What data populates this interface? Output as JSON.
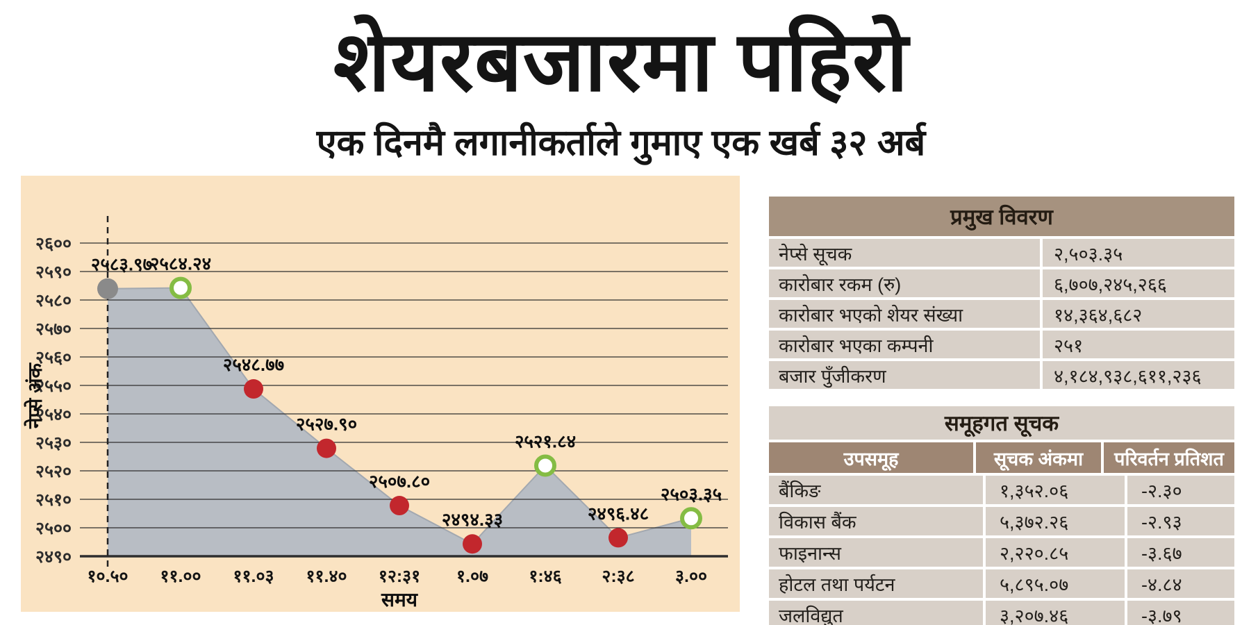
{
  "header": {
    "title": "शेयरबजारमा पहिरो",
    "subtitle": "एक दिनमै लगानीकर्ताले गुमाए एक खर्ब ३२ अर्ब"
  },
  "chart_data": {
    "type": "area",
    "title": "",
    "xlabel": "समय",
    "ylabel": "नेप्से अंक",
    "x": [
      "१०.५०",
      "११.००",
      "११.०३",
      "११.४०",
      "१२:३१",
      "१.०७",
      "१:४६",
      "२:३८",
      "३.००"
    ],
    "values": [
      2583.97,
      2584.24,
      2548.77,
      2527.9,
      2507.8,
      2494.33,
      2521.84,
      2496.48,
      2503.35
    ],
    "point_labels": [
      "२५८३.९७",
      "२५८४.२४",
      "२५४८.७७",
      "२५२७.९०",
      "२५०७.८०",
      "२४९४.३३",
      "२५२१.८४",
      "२४९६.४८",
      "२५०३.३५"
    ],
    "markers": [
      "gray",
      "green-ring",
      "red",
      "red",
      "red",
      "red",
      "green-ring",
      "red",
      "green-ring"
    ],
    "yticks": [
      {
        "label": "२६००",
        "value": 2600
      },
      {
        "label": "२५९०",
        "value": 2590
      },
      {
        "label": "२५८०",
        "value": 2580
      },
      {
        "label": "२५७०",
        "value": 2570
      },
      {
        "label": "२५६०",
        "value": 2560
      },
      {
        "label": "२५५०",
        "value": 2550
      },
      {
        "label": "२५४०",
        "value": 2540
      },
      {
        "label": "२५३०",
        "value": 2530
      },
      {
        "label": "२५२०",
        "value": 2520
      },
      {
        "label": "२५१०",
        "value": 2510
      },
      {
        "label": "२५००",
        "value": 2500
      },
      {
        "label": "२४९०",
        "value": 2490
      }
    ],
    "ylim": [
      2490,
      2610
    ],
    "grid": true,
    "legend": "none",
    "colors": {
      "panel_bg": "#fae3c2",
      "area_fill": "#b8bdc4",
      "area_edge": "#a2a8b0",
      "red_point": "#c2272d",
      "green_ring": "#84bc44",
      "gray_point": "#8a8a8a",
      "grid_line": "#2e2e2e"
    }
  },
  "tables": {
    "key_details": {
      "title": "प्रमुख विवरण",
      "rows": [
        {
          "label": "नेप्से सूचक",
          "value": "२,५०३.३५"
        },
        {
          "label": "कारोबार रकम (रु)",
          "value": "६,७०७,२४५,२६६"
        },
        {
          "label": "कारोबार भएको शेयर संख्या",
          "value": "१४,३६४,६८२"
        },
        {
          "label": "कारोबार भएका कम्पनी",
          "value": "२५१"
        },
        {
          "label": "बजार पुँजीकरण",
          "value": "४,१८४,९३८,६११,२३६"
        }
      ]
    },
    "group_index": {
      "title": "समूहगत सूचक",
      "columns": [
        "उपसमूह",
        "सूचक अंकमा",
        "परिवर्तन प्रतिशत"
      ],
      "rows": [
        {
          "name": "बैंकिङ",
          "index": "१,३५२.०६",
          "change": "-२.३०"
        },
        {
          "name": "विकास बैंक",
          "index": "५,३७२.२६",
          "change": "-२.९३"
        },
        {
          "name": "फाइनान्स",
          "index": "२,२२०.८५",
          "change": "-३.६७"
        },
        {
          "name": "होटल तथा पर्यटन",
          "index": "५,८९५.०७",
          "change": "-४.८४"
        },
        {
          "name": "जलविद्युत",
          "index": "३,२०७.४६",
          "change": "-३.७९"
        }
      ]
    }
  }
}
